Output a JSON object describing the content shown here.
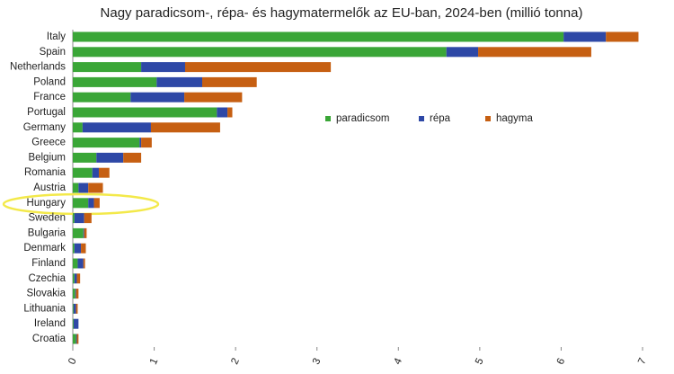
{
  "chart_data": {
    "type": "stacked-bar-horizontal",
    "title": "Nagy paradicsom-, répa- és hagymatermelők az EU-ban, 2024-ben (millió tonna)",
    "categories": [
      "Italy",
      "Spain",
      "Netherlands",
      "Poland",
      "France",
      "Portugal",
      "Germany",
      "Greece",
      "Belgium",
      "Romania",
      "Austria",
      "Hungary",
      "Sweden",
      "Bulgaria",
      "Denmark",
      "Finland",
      "Czechia",
      "Slovakia",
      "Lithuania",
      "Ireland",
      "Croatia"
    ],
    "series": [
      {
        "name": "paradicsom",
        "color": "#3aa637",
        "values": [
          6.03,
          4.59,
          0.84,
          1.03,
          0.71,
          1.77,
          0.12,
          0.82,
          0.29,
          0.24,
          0.07,
          0.19,
          0.02,
          0.13,
          0.02,
          0.06,
          0.02,
          0.03,
          0.01,
          0.01,
          0.04
        ]
      },
      {
        "name": "répa",
        "color": "#2e48a6",
        "values": [
          0.52,
          0.39,
          0.54,
          0.56,
          0.66,
          0.13,
          0.84,
          0.02,
          0.33,
          0.08,
          0.12,
          0.07,
          0.12,
          0.01,
          0.08,
          0.07,
          0.03,
          0.01,
          0.03,
          0.06,
          0.01
        ]
      },
      {
        "name": "hagyma",
        "color": "#c65f12",
        "values": [
          0.4,
          1.39,
          1.79,
          0.67,
          0.71,
          0.06,
          0.85,
          0.13,
          0.22,
          0.13,
          0.18,
          0.07,
          0.09,
          0.03,
          0.06,
          0.02,
          0.04,
          0.03,
          0.02,
          0,
          0.02
        ]
      }
    ],
    "xlim": [
      0,
      7
    ],
    "xticks": [
      0,
      1,
      2,
      3,
      4,
      5,
      6,
      7
    ]
  }
}
